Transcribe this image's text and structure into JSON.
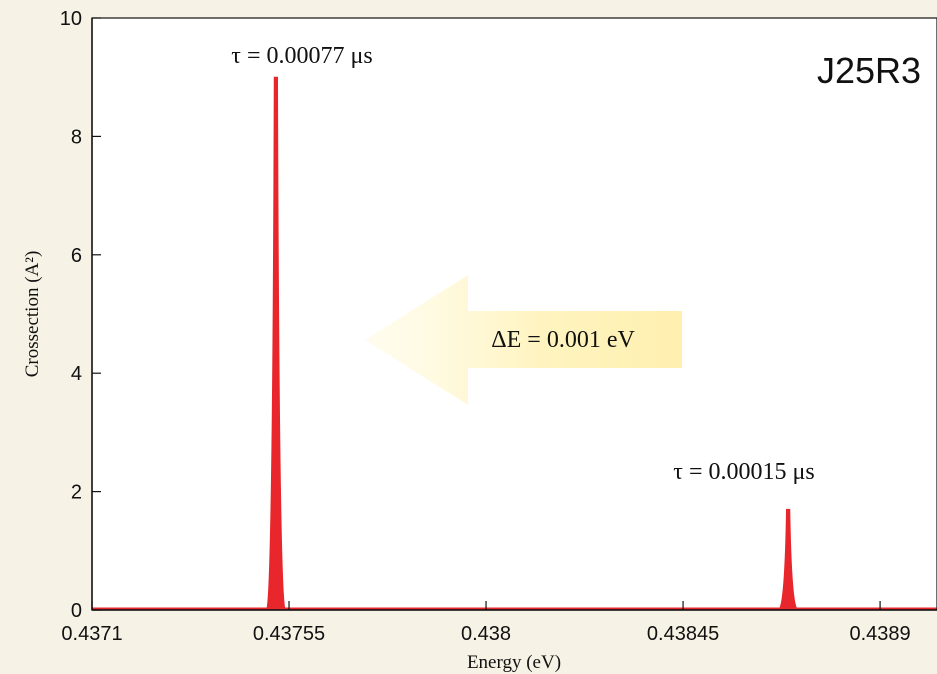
{
  "chart_data": {
    "type": "line",
    "xlabel": "Energy (eV)",
    "ylabel": "Crossection (A²)",
    "xlim": [
      0.4371,
      0.43903
    ],
    "ylim": [
      0,
      10
    ],
    "x_ticks": [
      0.4371,
      0.43755,
      0.438,
      0.43845,
      0.4389
    ],
    "x_tick_labels": [
      "0.4371",
      "0.43755",
      "0.438",
      "0.43845",
      "0.4389"
    ],
    "y_ticks": [
      0,
      2,
      4,
      6,
      8,
      10
    ],
    "y_tick_labels": [
      "0",
      "2",
      "4",
      "6",
      "8",
      "10"
    ],
    "grid": false,
    "series": [
      {
        "color": "#e8262b",
        "peaks": [
          {
            "x": 0.43752,
            "y": 9.0
          },
          {
            "x": 0.43869,
            "y": 1.7
          }
        ],
        "baseline": 0
      }
    ],
    "annotations": {
      "plot_label": "J25R3",
      "tau_left": "τ = 0.00077 μs",
      "tau_right": "τ = 0.00015 μs",
      "delta_e": "ΔE = 0.001 eV"
    },
    "arrow": {
      "direction": "left",
      "color": "#fff3b0"
    }
  }
}
